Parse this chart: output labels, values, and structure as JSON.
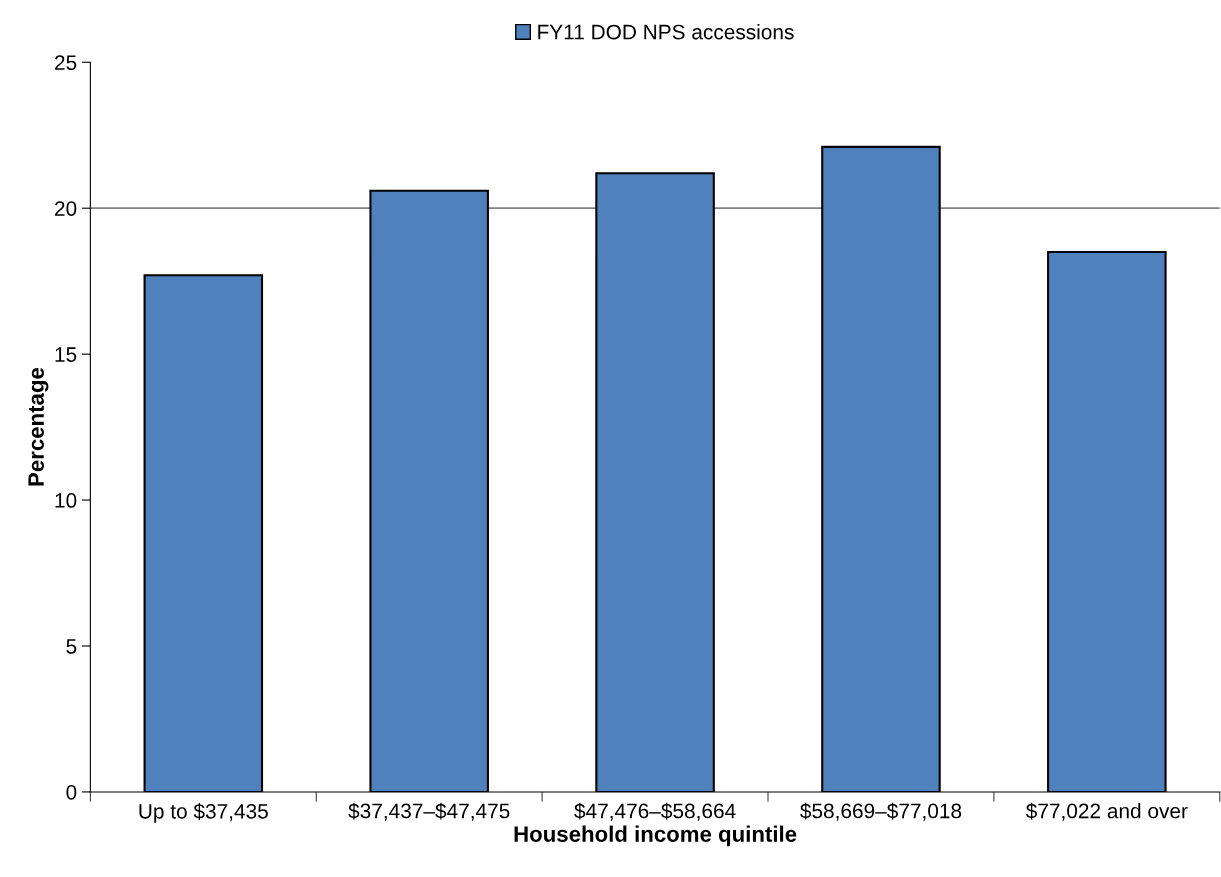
{
  "chart_data": {
    "type": "bar",
    "xlabel": "Household income quintile",
    "ylabel": "Percentage",
    "categories": [
      "Up to $37,435",
      "$37,437–$47,475",
      "$47,476–$58,664",
      "$58,669–$77,018",
      "$77,022 and over"
    ],
    "series": [
      {
        "name": "FY11 DOD NPS accessions",
        "color": "#4f81bd",
        "values": [
          17.7,
          20.6,
          21.2,
          22.1,
          18.5
        ]
      }
    ],
    "ylim": [
      0,
      25
    ],
    "yticks": [
      0,
      5,
      10,
      15,
      20,
      25
    ],
    "ref_lines": [
      {
        "axis": "y",
        "value": 20,
        "color": "#808080"
      }
    ],
    "grid": false,
    "legend": "top"
  }
}
